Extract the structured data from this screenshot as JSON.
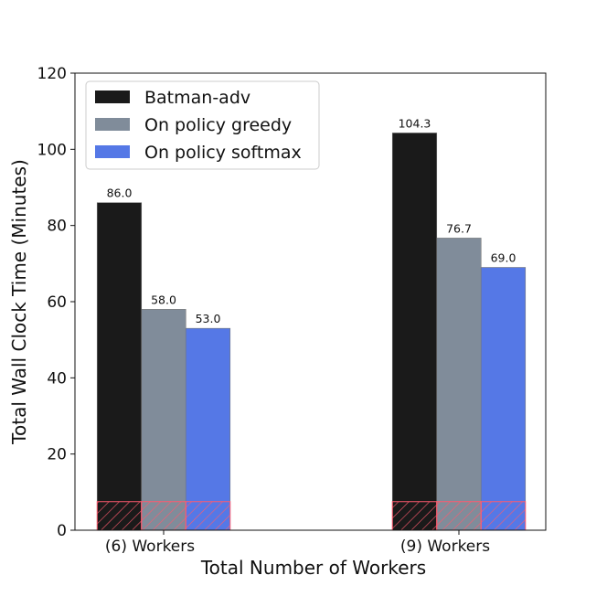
{
  "chart_data": {
    "type": "bar",
    "title": "",
    "xlabel": "Total Number of Workers",
    "ylabel": "Total Wall Clock Time (Minutes)",
    "categories": [
      "(6) Workers",
      "(9) Workers"
    ],
    "ylim": [
      0,
      120
    ],
    "yticks": [
      0,
      20,
      40,
      60,
      80,
      100,
      120
    ],
    "legend_position": "top-left",
    "grid": false,
    "series": [
      {
        "name": "Batman-adv",
        "values": [
          86.0,
          104.3
        ],
        "labels": [
          "86.0",
          "104.3"
        ],
        "color": "#1a1a1a"
      },
      {
        "name": "On policy greedy",
        "values": [
          58.0,
          76.7
        ],
        "labels": [
          "58.0",
          "76.7"
        ],
        "color": "#808c9a"
      },
      {
        "name": "On policy softmax",
        "values": [
          53.0,
          69.0
        ],
        "labels": [
          "53.0",
          "69.0"
        ],
        "color": "#5578e6"
      }
    ],
    "hatched_base": {
      "value": 7.5,
      "hatch_color": "#ff5a6e"
    }
  }
}
